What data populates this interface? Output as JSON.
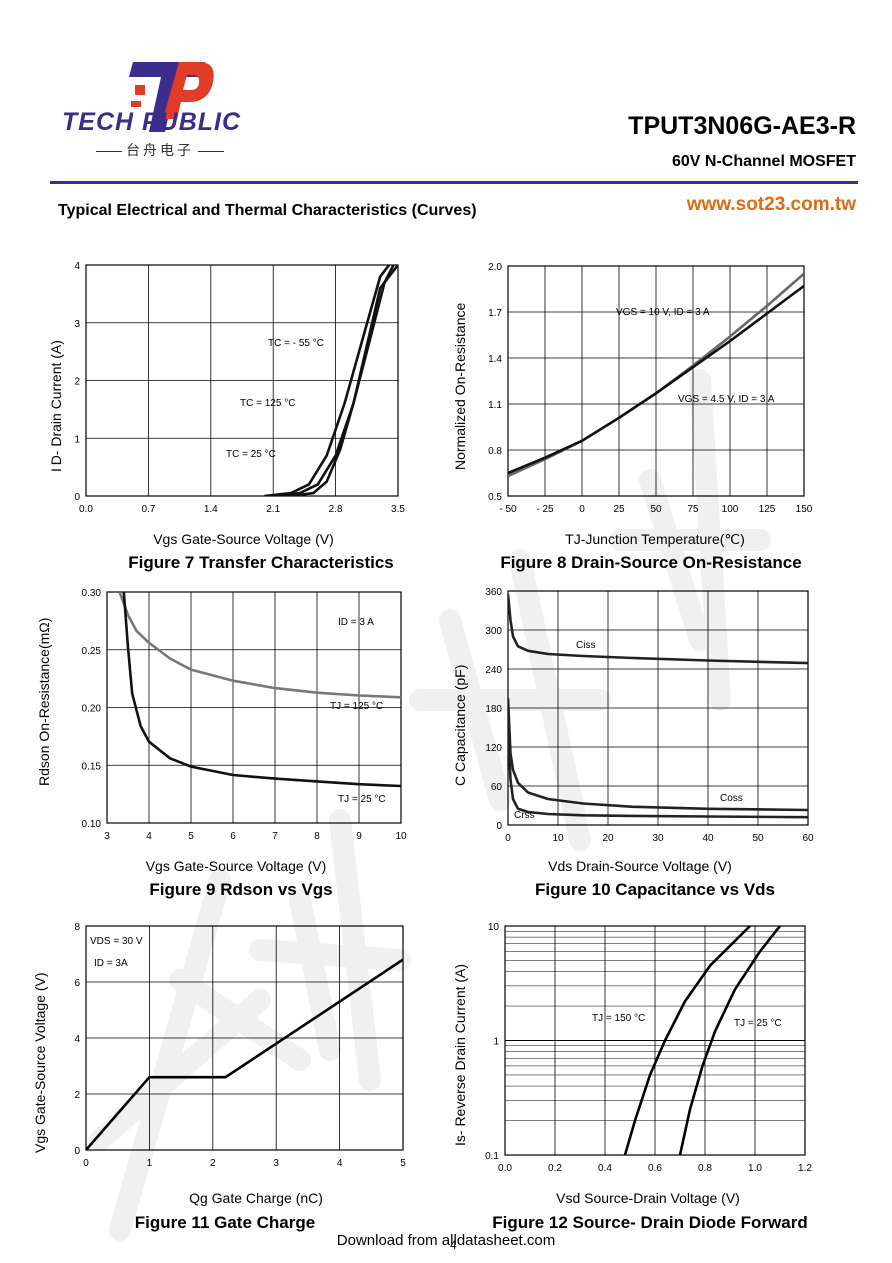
{
  "header": {
    "brand": "TECH PUBLIC",
    "brand_cn": "台舟电子",
    "part_number": "TPUT3N06G-AE3-R",
    "subtitle": "60V  N-Channel MOSFET",
    "section_title": "Typical Electrical and Thermal Characteristics (Curves)",
    "website": "www.sot23.com.tw",
    "accent_color": "#3a2d8c",
    "logo_red": "#e03c28",
    "website_color": "#e06a12"
  },
  "footer": {
    "text": "Download from alldatasheet.com",
    "page": "4"
  },
  "figures": [
    {
      "caption": "Figure 7 Transfer Characteristics",
      "xlabel_text": "Vgs Gate-Source Voltage (V)",
      "ylabel_text": "I D- Drain Current (A)"
    },
    {
      "caption": "Figure 8 Drain-Source On-Resistance",
      "xlabel_text": "TJ-Junction Temperature(℃)",
      "ylabel_text": "Normalized On-Resistance"
    },
    {
      "caption": "Figure 9 Rdson vs Vgs",
      "xlabel_text": "Vgs Gate-Source Voltage (V)",
      "ylabel_text": "Rdson On-Resistance(mΩ)"
    },
    {
      "caption": "Figure 10 Capacitance vs Vds",
      "xlabel_text": "Vds Drain-Source Voltage (V)",
      "ylabel_text": "C Capacitance (pF)"
    },
    {
      "caption": "Figure 11 Gate Charge",
      "xlabel_text": "Qg Gate Charge (nC)",
      "ylabel_text": "Vgs Gate-Source Voltage (V)"
    },
    {
      "caption": "Figure 12 Source- Drain Diode Forward",
      "xlabel_text": "Vsd Source-Drain Voltage (V)",
      "ylabel_text": "Is- Reverse Drain Current (A)"
    }
  ],
  "chart_data": [
    {
      "type": "line",
      "xlim": [
        0,
        3.5
      ],
      "ylim": [
        0,
        4
      ],
      "xticks": [
        "0.0",
        "0.7",
        "1.4",
        "2.1",
        "2.8",
        "3.5"
      ],
      "yticks": [
        "0",
        "1",
        "2",
        "3",
        "4"
      ],
      "grid": true,
      "series": [
        {
          "name": "TC = 125 °C",
          "x": [
            2.0,
            2.3,
            2.5,
            2.7,
            2.9,
            3.1,
            3.3,
            3.4
          ],
          "y": [
            0,
            0.05,
            0.2,
            0.7,
            1.6,
            2.7,
            3.8,
            4.0
          ]
        },
        {
          "name": "TC = 25 °C",
          "x": [
            2.1,
            2.4,
            2.6,
            2.8,
            3.0,
            3.2,
            3.35,
            3.45
          ],
          "y": [
            0,
            0.05,
            0.2,
            0.7,
            1.6,
            2.8,
            3.7,
            4.0
          ]
        },
        {
          "name": "TC = - 55 °C",
          "x": [
            2.3,
            2.55,
            2.7,
            2.85,
            3.0,
            3.15,
            3.3,
            3.5
          ],
          "y": [
            0,
            0.05,
            0.25,
            0.8,
            1.6,
            2.6,
            3.6,
            4.0
          ]
        }
      ],
      "annotations": [
        {
          "text": "TC = - 55 °C"
        },
        {
          "text": "TC = 125 °C"
        },
        {
          "text": "TC = 25 °C"
        }
      ]
    },
    {
      "type": "line",
      "xlim": [
        -50,
        150
      ],
      "ylim": [
        0.5,
        2.0
      ],
      "xticks": [
        "- 50",
        "- 25",
        "0",
        "25",
        "50",
        "75",
        "100",
        "125",
        "150"
      ],
      "yticks": [
        "0.5",
        "0.8",
        "1.1",
        "1.4",
        "1.7",
        "2.0"
      ],
      "grid": true,
      "series": [
        {
          "name": "VGS = 10 V, ID = 3 A",
          "x": [
            -50,
            -25,
            0,
            25,
            50,
            75,
            100,
            125,
            150
          ],
          "y": [
            0.63,
            0.74,
            0.86,
            1.01,
            1.17,
            1.35,
            1.54,
            1.74,
            1.95
          ]
        },
        {
          "name": "VGS = 4.5 V, ID = 3 A",
          "x": [
            -50,
            -25,
            0,
            25,
            50,
            75,
            100,
            125,
            150
          ],
          "y": [
            0.65,
            0.75,
            0.86,
            1.01,
            1.17,
            1.34,
            1.51,
            1.69,
            1.87
          ]
        }
      ],
      "annotations": [
        {
          "text": "VGS = 10 V, ID = 3 A"
        },
        {
          "text": "VGS = 4.5 V, ID = 3 A"
        }
      ]
    },
    {
      "type": "line",
      "xlim": [
        3,
        10
      ],
      "ylim": [
        0.05,
        0.3
      ],
      "xticks": [
        "3",
        "4",
        "5",
        "6",
        "7",
        "8",
        "9",
        "10"
      ],
      "yticks": [
        "0.10",
        "0.15",
        "0.20",
        "0.25",
        "0.30"
      ],
      "grid": true,
      "series": [
        {
          "name": "TJ = 125 °C",
          "x": [
            3.3,
            3.5,
            3.7,
            4.0,
            4.5,
            5,
            6,
            7,
            8,
            9,
            10
          ],
          "y": [
            0.3,
            0.275,
            0.258,
            0.245,
            0.228,
            0.216,
            0.204,
            0.196,
            0.191,
            0.188,
            0.186
          ]
        },
        {
          "name": "TJ = 25 °C",
          "x": [
            3.4,
            3.5,
            3.6,
            3.8,
            4.0,
            4.5,
            5,
            6,
            7,
            8,
            9,
            10
          ],
          "y": [
            0.3,
            0.24,
            0.19,
            0.155,
            0.138,
            0.12,
            0.111,
            0.102,
            0.098,
            0.095,
            0.092,
            0.09
          ]
        }
      ],
      "annotations": [
        {
          "text": "ID = 3 A"
        },
        {
          "text": "TJ = 125 °C"
        },
        {
          "text": "TJ = 25 °C"
        }
      ]
    },
    {
      "type": "line",
      "xlim": [
        0,
        60
      ],
      "ylim": [
        0,
        360
      ],
      "xticks": [
        "0",
        "10",
        "20",
        "30",
        "40",
        "50",
        "60"
      ],
      "yticks": [
        "0",
        "60",
        "120",
        "180",
        "240",
        "300",
        "360"
      ],
      "grid": true,
      "series": [
        {
          "name": "Ciss",
          "x": [
            0,
            0.5,
            1,
            2,
            4,
            8,
            15,
            25,
            40,
            60
          ],
          "y": [
            355,
            315,
            290,
            275,
            268,
            263,
            260,
            257,
            253,
            249
          ]
        },
        {
          "name": "Coss",
          "x": [
            0,
            0.5,
            1,
            2,
            4,
            8,
            15,
            25,
            40,
            60
          ],
          "y": [
            195,
            110,
            85,
            65,
            50,
            40,
            33,
            28,
            25,
            23
          ]
        },
        {
          "name": "Crss",
          "x": [
            0,
            0.5,
            1,
            2,
            4,
            8,
            15,
            25,
            40,
            60
          ],
          "y": [
            150,
            70,
            40,
            25,
            20,
            17,
            15,
            14,
            13,
            12
          ]
        }
      ],
      "annotations": [
        {
          "text": "Ciss"
        },
        {
          "text": "Coss"
        },
        {
          "text": "Crss"
        }
      ]
    },
    {
      "type": "line",
      "xlim": [
        0,
        5
      ],
      "ylim": [
        0,
        8
      ],
      "xticks": [
        "0",
        "1",
        "2",
        "3",
        "4",
        "5"
      ],
      "yticks": [
        "0",
        "2",
        "4",
        "6",
        "8"
      ],
      "grid": true,
      "series": [
        {
          "name": "",
          "x": [
            0,
            1.0,
            2.2,
            5.0
          ],
          "y": [
            0,
            2.6,
            2.6,
            6.8
          ]
        }
      ],
      "annotations": [
        {
          "text": "VDS = 30 V"
        },
        {
          "text": "ID =  3A"
        }
      ]
    },
    {
      "type": "line",
      "log_y": true,
      "xlim": [
        0,
        1.2
      ],
      "ylim": [
        0.1,
        10
      ],
      "xticks": [
        "0.0",
        "0.2",
        "0.4",
        "0.6",
        "0.8",
        "1.0",
        "1.2"
      ],
      "yticks": [
        "0.1",
        "1",
        "10"
      ],
      "grid": true,
      "series": [
        {
          "name": "TJ = 150 °C",
          "x": [
            0.48,
            0.52,
            0.58,
            0.64,
            0.72,
            0.82,
            0.98
          ],
          "y": [
            0.1,
            0.2,
            0.5,
            1.0,
            2.2,
            4.5,
            10
          ]
        },
        {
          "name": "TJ = 25 °C",
          "x": [
            0.7,
            0.74,
            0.79,
            0.84,
            0.92,
            1.02,
            1.1
          ],
          "y": [
            0.1,
            0.25,
            0.6,
            1.2,
            2.8,
            6.0,
            10
          ]
        }
      ],
      "annotations": [
        {
          "text": "TJ = 150 °C"
        },
        {
          "text": "TJ = 25 °C"
        }
      ]
    }
  ]
}
